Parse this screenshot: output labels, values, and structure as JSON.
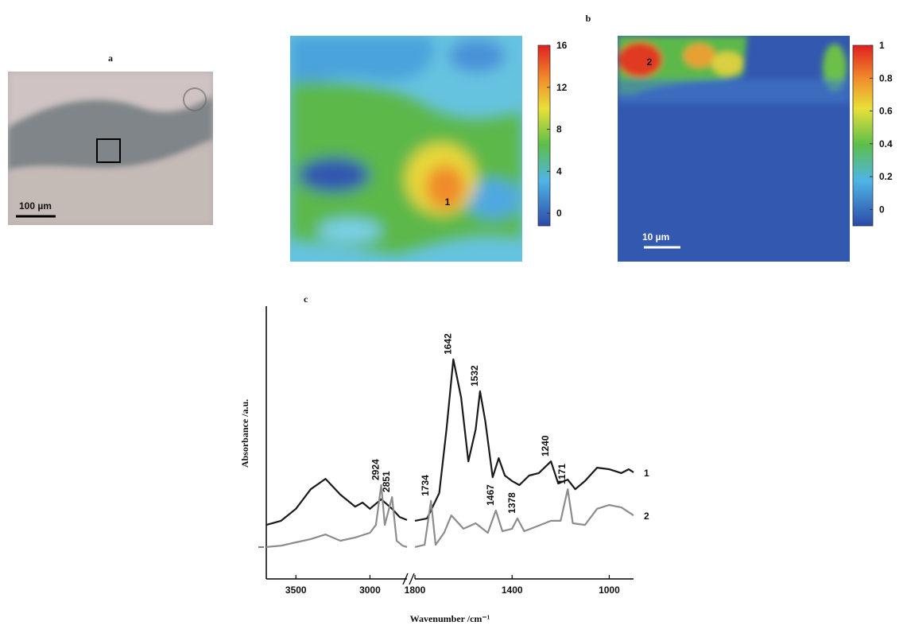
{
  "panel_a": {
    "label": "a",
    "scale_bar": "100 µm"
  },
  "panel_b": {
    "label": "b",
    "map_1": {
      "marker": "1",
      "colorbar": {
        "lim": [
          -1.2,
          16
        ],
        "ticks": [
          0,
          4,
          8,
          12,
          16
        ]
      }
    },
    "map_2": {
      "marker": "2",
      "scale_bar": "10 µm",
      "colorbar": {
        "lim": [
          -0.1,
          1
        ],
        "ticks": [
          0,
          0.2,
          0.4,
          0.6,
          0.8,
          1
        ]
      }
    }
  },
  "chart_data": {
    "type": "line",
    "label": "c",
    "xlabel": "Wavenumber /cm⁻¹",
    "ylabel": "Absorbance /a.u.",
    "x_segments": [
      {
        "xlim": [
          3700,
          2750
        ],
        "xticks": [
          3500,
          3000
        ]
      },
      {
        "xlim": [
          1800,
          900
        ],
        "xticks": [
          1800,
          1400,
          1000
        ]
      }
    ],
    "ylim": [
      0,
      10
    ],
    "series": [
      {
        "name": "1",
        "color": "#1a1a1a",
        "x": [
          3700,
          3600,
          3500,
          3400,
          3300,
          3200,
          3100,
          3050,
          3000,
          2924,
          2851,
          2800,
          2750,
          1800,
          1750,
          1700,
          1670,
          1642,
          1610,
          1580,
          1550,
          1532,
          1510,
          1480,
          1455,
          1430,
          1400,
          1370,
          1330,
          1290,
          1240,
          1210,
          1171,
          1140,
          1100,
          1050,
          1000,
          950,
          920,
          900
        ],
        "values": [
          1.98,
          2.13,
          2.57,
          3.29,
          3.67,
          3.09,
          2.65,
          2.8,
          2.57,
          2.92,
          2.57,
          2.27,
          2.16,
          2.13,
          2.22,
          3.15,
          5.48,
          8.05,
          6.65,
          4.31,
          5.48,
          6.88,
          5.77,
          3.73,
          4.43,
          3.79,
          3.59,
          3.44,
          3.79,
          3.88,
          4.31,
          3.5,
          3.64,
          3.29,
          3.59,
          4.08,
          4.02,
          3.88,
          4.02,
          3.91
        ],
        "peaks": [
          1642,
          1532,
          1240
        ]
      },
      {
        "name": "2",
        "color": "#8c8c8c",
        "x": [
          3700,
          3600,
          3500,
          3400,
          3300,
          3200,
          3100,
          3000,
          2960,
          2924,
          2900,
          2851,
          2820,
          2780,
          2750,
          1800,
          1760,
          1734,
          1715,
          1680,
          1650,
          1600,
          1550,
          1500,
          1467,
          1440,
          1400,
          1378,
          1350,
          1300,
          1240,
          1200,
          1171,
          1150,
          1100,
          1050,
          1000,
          950,
          900
        ],
        "values": [
          1.17,
          1.22,
          1.34,
          1.46,
          1.63,
          1.4,
          1.52,
          1.69,
          1.98,
          3.44,
          1.98,
          3.0,
          1.4,
          1.22,
          1.17,
          1.17,
          1.25,
          2.86,
          1.25,
          1.69,
          2.33,
          1.84,
          2.04,
          1.69,
          2.51,
          1.75,
          1.84,
          2.22,
          1.75,
          1.92,
          2.13,
          2.13,
          3.29,
          2.04,
          1.98,
          2.57,
          2.71,
          2.62,
          2.33
        ],
        "peaks": [
          2924,
          2851,
          1734,
          1467,
          1378,
          1171
        ]
      }
    ]
  }
}
